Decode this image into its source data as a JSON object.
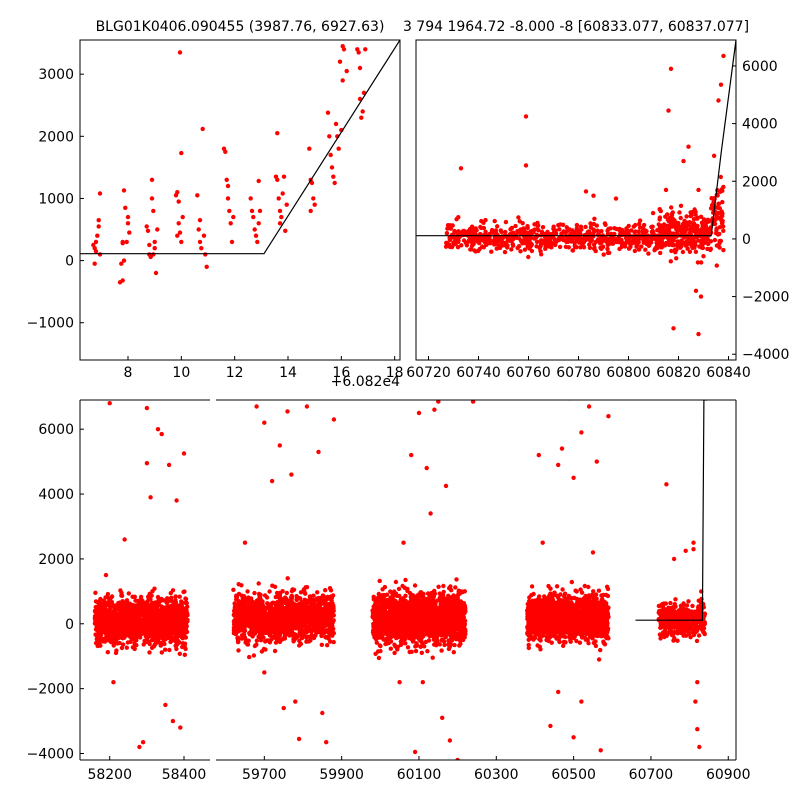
{
  "chart_data": [
    {
      "type": "scatter",
      "title": "BLG01K0406.090455 (3987.76, 6927.63)",
      "x_offset_label": "+6.082e4",
      "xlim": [
        6.2,
        18.2
      ],
      "ylim": [
        -1600,
        3550
      ],
      "x_ticks": [
        8,
        10,
        12,
        14,
        16,
        18
      ],
      "x_tick_labels": [
        "8",
        "10",
        "12",
        "14",
        "16",
        "18"
      ],
      "y_ticks": [
        -1000,
        0,
        1000,
        2000,
        3000
      ],
      "y_tick_labels": [
        "−1000",
        "0",
        "1000",
        "2000",
        "3000"
      ],
      "y_axis_side": "left",
      "grid": false,
      "point_color": "#ff0000",
      "line_color": "#000000",
      "fit_line": {
        "x": [
          6.2,
          13.1,
          18.2
        ],
        "y": [
          110,
          110,
          3550
        ]
      },
      "points": [
        [
          6.7,
          250
        ],
        [
          6.75,
          200
        ],
        [
          6.8,
          300
        ],
        [
          6.75,
          -50
        ],
        [
          6.8,
          150
        ],
        [
          6.85,
          400
        ],
        [
          6.9,
          550
        ],
        [
          6.9,
          650
        ],
        [
          6.95,
          1080
        ],
        [
          6.95,
          100
        ],
        [
          7.8,
          300
        ],
        [
          7.75,
          -50
        ],
        [
          7.8,
          -320
        ],
        [
          7.85,
          1130
        ],
        [
          7.9,
          850
        ],
        [
          7.95,
          300
        ],
        [
          8.0,
          700
        ],
        [
          8.0,
          600
        ],
        [
          8.05,
          450
        ],
        [
          7.85,
          0
        ],
        [
          7.7,
          -350
        ],
        [
          7.8,
          280
        ],
        [
          8.7,
          550
        ],
        [
          8.75,
          480
        ],
        [
          8.8,
          100
        ],
        [
          8.85,
          60
        ],
        [
          8.9,
          1300
        ],
        [
          8.9,
          1000
        ],
        [
          8.95,
          800
        ],
        [
          9.0,
          300
        ],
        [
          9.0,
          200
        ],
        [
          9.05,
          -200
        ],
        [
          9.1,
          500
        ],
        [
          8.95,
          100
        ],
        [
          8.8,
          250
        ],
        [
          9.8,
          1050
        ],
        [
          9.85,
          1100
        ],
        [
          9.9,
          600
        ],
        [
          9.95,
          450
        ],
        [
          10.0,
          1730
        ],
        [
          10.0,
          300
        ],
        [
          9.95,
          3350
        ],
        [
          10.05,
          700
        ],
        [
          9.85,
          400
        ],
        [
          9.9,
          950
        ],
        [
          10.6,
          1050
        ],
        [
          10.65,
          500
        ],
        [
          10.7,
          300
        ],
        [
          10.75,
          200
        ],
        [
          10.8,
          2120
        ],
        [
          10.85,
          400
        ],
        [
          10.9,
          100
        ],
        [
          10.95,
          -100
        ],
        [
          10.7,
          650
        ],
        [
          11.6,
          1800
        ],
        [
          11.65,
          1750
        ],
        [
          11.7,
          1300
        ],
        [
          11.75,
          1200
        ],
        [
          11.8,
          800
        ],
        [
          11.85,
          600
        ],
        [
          11.9,
          300
        ],
        [
          11.95,
          700
        ],
        [
          11.75,
          1000
        ],
        [
          12.6,
          1000
        ],
        [
          12.65,
          800
        ],
        [
          12.7,
          700
        ],
        [
          12.75,
          500
        ],
        [
          12.8,
          400
        ],
        [
          12.85,
          300
        ],
        [
          12.9,
          1280
        ],
        [
          12.9,
          600
        ],
        [
          12.95,
          800
        ],
        [
          13.6,
          2050
        ],
        [
          13.55,
          1350
        ],
        [
          13.6,
          1300
        ],
        [
          13.65,
          1000
        ],
        [
          13.7,
          800
        ],
        [
          13.75,
          700
        ],
        [
          13.8,
          1080
        ],
        [
          13.85,
          1350
        ],
        [
          13.9,
          480
        ],
        [
          13.95,
          900
        ],
        [
          13.7,
          600
        ],
        [
          14.8,
          1800
        ],
        [
          14.85,
          1300
        ],
        [
          14.9,
          1250
        ],
        [
          14.95,
          1000
        ],
        [
          15.0,
          900
        ],
        [
          14.85,
          800
        ],
        [
          15.5,
          2380
        ],
        [
          15.55,
          2000
        ],
        [
          15.6,
          1700
        ],
        [
          15.65,
          1500
        ],
        [
          15.7,
          1350
        ],
        [
          15.75,
          1250
        ],
        [
          15.8,
          2200
        ],
        [
          15.85,
          2000
        ],
        [
          15.9,
          1800
        ],
        [
          16.0,
          2100
        ],
        [
          16.05,
          2900
        ],
        [
          16.1,
          3400
        ],
        [
          15.95,
          3200
        ],
        [
          16.05,
          3450
        ],
        [
          16.2,
          3050
        ],
        [
          16.6,
          3400
        ],
        [
          16.65,
          3350
        ],
        [
          16.7,
          2600
        ],
        [
          16.75,
          2300
        ],
        [
          16.8,
          2400
        ],
        [
          16.85,
          2700
        ],
        [
          16.9,
          3400
        ],
        [
          16.7,
          3100
        ]
      ]
    },
    {
      "type": "scatter",
      "title": "3 794 1964.72 -8.000 -8 [60833.077, 60837.077]",
      "xlim": [
        60715,
        60843
      ],
      "ylim": [
        -4200,
        6900
      ],
      "x_ticks": [
        60720,
        60740,
        60760,
        60780,
        60800,
        60820,
        60840
      ],
      "x_tick_labels": [
        "60720",
        "60740",
        "60760",
        "60780",
        "60800",
        "60820",
        "60840"
      ],
      "y_ticks": [
        -4000,
        -2000,
        0,
        2000,
        4000,
        6000
      ],
      "y_tick_labels": [
        "−4000",
        "−2000",
        "0",
        "2000",
        "4000",
        "6000"
      ],
      "y_axis_side": "right",
      "grid": false,
      "point_color": "#ff0000",
      "line_color": "#000000",
      "fit_line": {
        "x": [
          60715,
          60833.1,
          60837.1,
          60843
        ],
        "y": [
          110,
          110,
          3000,
          6900
        ]
      },
      "scatter_groups": [
        {
          "x_range": [
            60727,
            60812
          ],
          "y_center": 50,
          "y_spread": 450,
          "count": 650
        },
        {
          "x_range": [
            60812,
            60833
          ],
          "y_center": 200,
          "y_spread": 700,
          "count": 300
        },
        {
          "x_range": [
            60833,
            60838
          ],
          "y_center": 900,
          "y_spread": 1300,
          "count": 70
        }
      ],
      "outliers": [
        [
          60759,
          4250
        ],
        [
          60759,
          2550
        ],
        [
          60733,
          2450
        ],
        [
          60783,
          1650
        ],
        [
          60817,
          5900
        ],
        [
          60816,
          4450
        ],
        [
          60824,
          3200
        ],
        [
          60821,
          1150
        ],
        [
          60828,
          1700
        ],
        [
          60811,
          -4350
        ],
        [
          60818,
          -3100
        ],
        [
          60827,
          -1800
        ],
        [
          60829,
          -2000
        ],
        [
          60828,
          -3300
        ],
        [
          60836,
          4800
        ],
        [
          60837,
          5350
        ],
        [
          60838,
          6350
        ],
        [
          60795,
          1400
        ],
        [
          60786,
          1500
        ],
        [
          60815,
          1700
        ],
        [
          60822,
          2700
        ]
      ]
    },
    {
      "type": "scatter",
      "title": "",
      "ylim": [
        -4200,
        6900
      ],
      "y_ticks": [
        -4000,
        -2000,
        0,
        2000,
        4000,
        6000
      ],
      "y_tick_labels": [
        "−4000",
        "−2000",
        "0",
        "2000",
        "4000",
        "6000"
      ],
      "y_axis_side": "left",
      "grid": false,
      "point_color": "#ff0000",
      "line_color": "#000000",
      "segments": [
        {
          "xlim": [
            58120,
            58470
          ],
          "x_ticks": [
            58200,
            58400
          ],
          "x_tick_labels": [
            "58200",
            "58400"
          ]
        },
        {
          "xlim": [
            59575,
            60920
          ],
          "x_ticks": [
            59700,
            59900,
            60100,
            60300,
            60500,
            60700,
            60900
          ],
          "x_tick_labels": [
            "59700",
            "59900",
            "60100",
            "60300",
            "60500",
            "60700",
            "60900"
          ]
        }
      ],
      "fit_line": {
        "x": [
          60660,
          60833.1,
          60837.1,
          60845
        ],
        "y": [
          110,
          110,
          6900,
          6900
        ]
      },
      "scatter_groups": [
        {
          "x_range": [
            58160,
            58410
          ],
          "y_center": 60,
          "y_spread": 700,
          "count": 1500
        },
        {
          "x_range": [
            59620,
            59800
          ],
          "y_center": 160,
          "y_spread": 700,
          "count": 1000
        },
        {
          "x_range": [
            59800,
            59880
          ],
          "y_center": 200,
          "y_spread": 650,
          "count": 400
        },
        {
          "x_range": [
            59980,
            60220
          ],
          "y_center": 180,
          "y_spread": 750,
          "count": 1800
        },
        {
          "x_range": [
            60380,
            60590
          ],
          "y_center": 180,
          "y_spread": 700,
          "count": 1500
        },
        {
          "x_range": [
            60720,
            60840
          ],
          "y_center": 120,
          "y_spread": 500,
          "count": 450
        }
      ],
      "outliers": [
        [
          58280,
          -3800
        ],
        [
          58290,
          -3650
        ],
        [
          58300,
          4950
        ],
        [
          58330,
          6000
        ],
        [
          58340,
          5850
        ],
        [
          58360,
          4900
        ],
        [
          58370,
          -3000
        ],
        [
          58400,
          5250
        ],
        [
          58390,
          -3200
        ],
        [
          58350,
          -2500
        ],
        [
          58210,
          -1800
        ],
        [
          58190,
          1500
        ],
        [
          58240,
          2600
        ],
        [
          58310,
          3900
        ],
        [
          58380,
          3800
        ],
        [
          58200,
          6800
        ],
        [
          58300,
          6650
        ],
        [
          59680,
          6700
        ],
        [
          59700,
          6200
        ],
        [
          59720,
          4400
        ],
        [
          59740,
          5500
        ],
        [
          59760,
          6550
        ],
        [
          59780,
          -2400
        ],
        [
          59790,
          -3550
        ],
        [
          59810,
          6700
        ],
        [
          59840,
          5300
        ],
        [
          59860,
          -3650
        ],
        [
          59880,
          6300
        ],
        [
          59850,
          -2750
        ],
        [
          59750,
          -2600
        ],
        [
          59650,
          2500
        ],
        [
          59700,
          -1500
        ],
        [
          59770,
          4600
        ],
        [
          60050,
          -1800
        ],
        [
          60080,
          5200
        ],
        [
          60100,
          6500
        ],
        [
          60120,
          4800
        ],
        [
          60140,
          6600
        ],
        [
          60150,
          6850
        ],
        [
          60170,
          4250
        ],
        [
          60180,
          -3600
        ],
        [
          60200,
          -4200
        ],
        [
          60220,
          -4300
        ],
        [
          60240,
          6850
        ],
        [
          60090,
          -3950
        ],
        [
          60130,
          3400
        ],
        [
          60160,
          -2900
        ],
        [
          60110,
          -1800
        ],
        [
          60060,
          2500
        ],
        [
          60410,
          5200
        ],
        [
          60440,
          -3150
        ],
        [
          60460,
          4900
        ],
        [
          60470,
          5400
        ],
        [
          60480,
          -4250
        ],
        [
          60490,
          6950
        ],
        [
          60500,
          4500
        ],
        [
          60520,
          5900
        ],
        [
          60540,
          6700
        ],
        [
          60560,
          5000
        ],
        [
          60570,
          -3900
        ],
        [
          60590,
          6400
        ],
        [
          60460,
          -2100
        ],
        [
          60520,
          -2400
        ],
        [
          60550,
          2200
        ],
        [
          60420,
          2500
        ],
        [
          60500,
          -3500
        ],
        [
          60740,
          4300
        ],
        [
          60760,
          2000
        ],
        [
          60790,
          2250
        ],
        [
          60810,
          2300
        ],
        [
          60820,
          -3250
        ],
        [
          60825,
          -3800
        ],
        [
          60830,
          1000
        ],
        [
          60820,
          -1800
        ],
        [
          60815,
          -2400
        ],
        [
          60810,
          2500
        ]
      ]
    }
  ]
}
